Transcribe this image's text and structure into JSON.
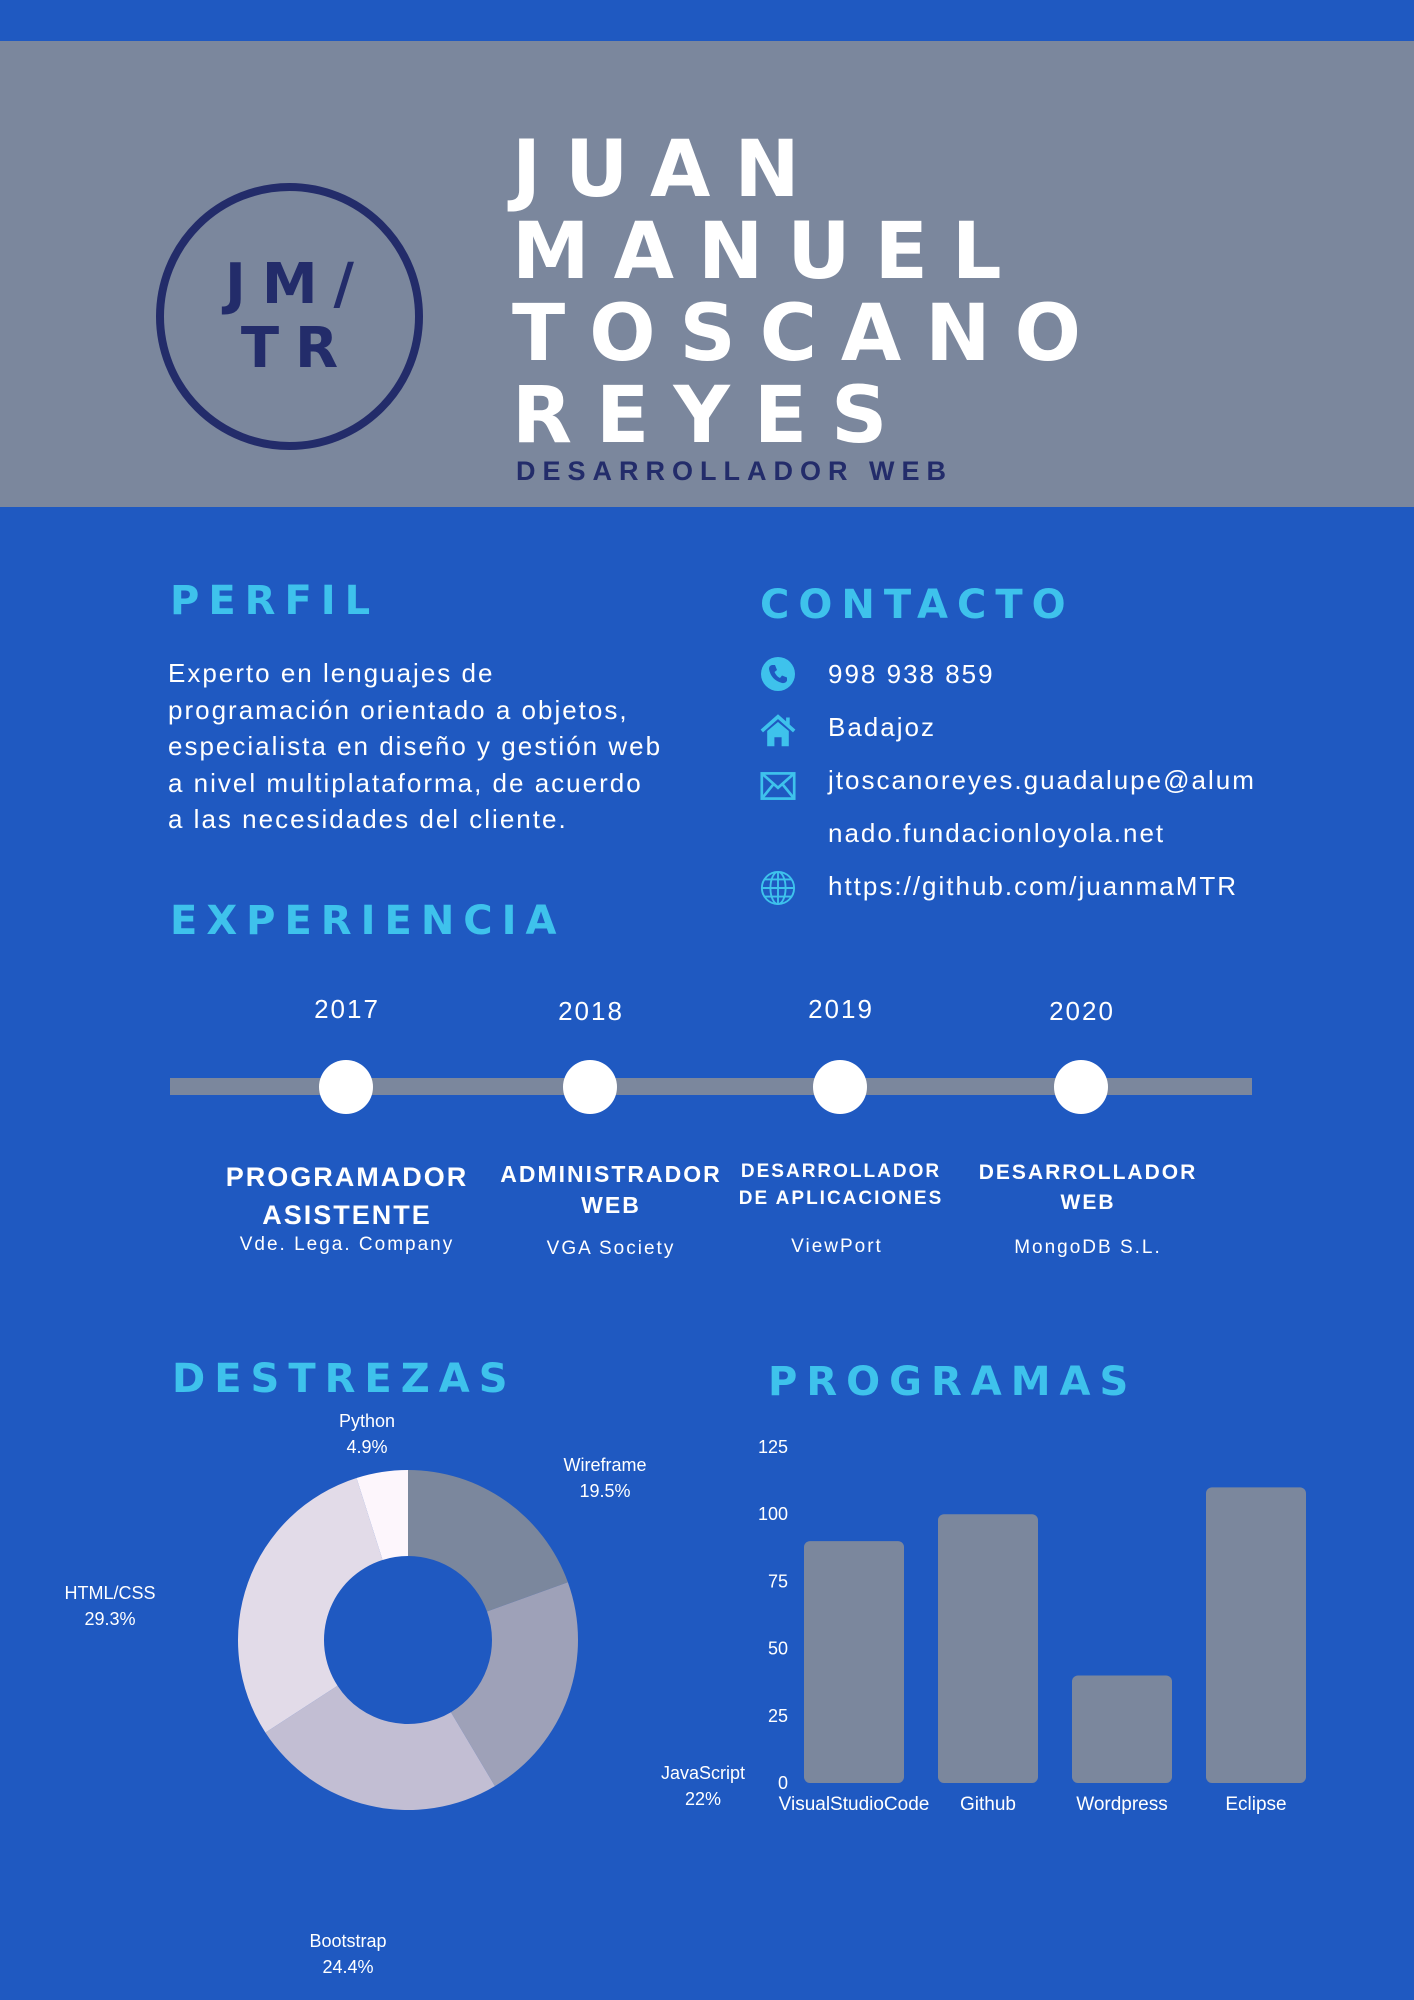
{
  "header": {
    "logo_line1": "JM/",
    "logo_line2": "TR",
    "name_lines": [
      "JUAN",
      "MANUEL",
      "TOSCANO",
      "REYES"
    ],
    "role": "DESARROLLADOR WEB"
  },
  "profile": {
    "heading": "PERFIL",
    "text": "Experto en lenguajes de programación orientado a objetos, especialista en diseño y gestión web a nivel multiplataforma, de acuerdo a las necesidades del cliente."
  },
  "contact": {
    "heading": "CONTACTO",
    "phone": "998 938 859",
    "city": "Badajoz",
    "email_line1": "jtoscanoreyes.guadalupe@alum",
    "email_line2": "nado.fundacionloyola.net",
    "web": "https://github.com/juanmaMTR",
    "icons": [
      "phone-icon",
      "home-icon",
      "mail-icon",
      "globe-icon"
    ]
  },
  "experience": {
    "heading": "EXPERIENCIA",
    "items": [
      {
        "year": "2017",
        "title1": "PROGRAMADOR",
        "title2": "ASISTENTE",
        "company": "Vde. Lega. Company"
      },
      {
        "year": "2018",
        "title1": "ADMINISTRADOR",
        "title2": "WEB",
        "company": "VGA Society"
      },
      {
        "year": "2019",
        "title1": "DESARROLLADOR",
        "title2": "DE APLICACIONES",
        "company": "ViewPort"
      },
      {
        "year": "2020",
        "title1": "DESARROLLADOR",
        "title2": "WEB",
        "company": "MongoDB S.L."
      }
    ]
  },
  "skills_heading": "DESTREZAS",
  "programs_heading": "PROGRAMAS",
  "colors": {
    "background": "#1f59c1",
    "header": "#7b879d",
    "accent": "#3ec2ec",
    "dark": "#232c6a"
  },
  "chart_data": [
    {
      "type": "pie",
      "donut": true,
      "title": "",
      "categories": [
        "Wireframe",
        "JavaScript",
        "Bootstrap",
        "HTML/CSS",
        "Python"
      ],
      "values": [
        19.5,
        22,
        24.4,
        29.3,
        4.9
      ],
      "value_labels": [
        "19.5%",
        "22%",
        "24.4%",
        "29.3%",
        "4.9%"
      ],
      "colors": [
        "#7b879d",
        "#9ea1b8",
        "#c2bed3",
        "#e2dbe8",
        "#fdf6fc"
      ]
    },
    {
      "type": "bar",
      "title": "",
      "categories": [
        "VisualStudioCode",
        "Github",
        "Wordpress",
        "Eclipse"
      ],
      "values": [
        90,
        100,
        40,
        110
      ],
      "ylim": [
        0,
        125
      ],
      "yticks": [
        "0",
        "25",
        "50",
        "75",
        "100",
        "125"
      ],
      "color": "#7b879d"
    }
  ]
}
